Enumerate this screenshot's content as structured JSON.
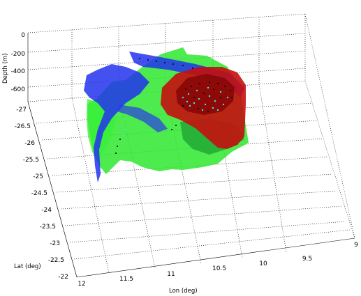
{
  "chart_data": {
    "type": "3d-surface",
    "xlabel": "Lon (deg)",
    "ylabel": "Lat (deg)",
    "zlabel": "Depth (m)",
    "x_ticks": [
      "12",
      "11.5",
      "11",
      "10.5",
      "10",
      "9.5",
      "9"
    ],
    "y_ticks": [
      "-27",
      "-26.5",
      "-26",
      "-25.5",
      "-25",
      "-24.5",
      "-24",
      "-23.5",
      "-23",
      "-22.5",
      "-22"
    ],
    "z_ticks": [
      "0",
      "-200",
      "-400",
      "-600"
    ],
    "xlim": [
      9,
      12
    ],
    "ylim": [
      -27,
      -22
    ],
    "zlim": [
      -700,
      0
    ],
    "grid": true,
    "surface_colors": {
      "blue_surface": "#2233ee",
      "green_surface": "#33ee33",
      "red_surface": "#cc1111",
      "points_black": "#000000",
      "points_cyan": "#44dddd"
    }
  }
}
